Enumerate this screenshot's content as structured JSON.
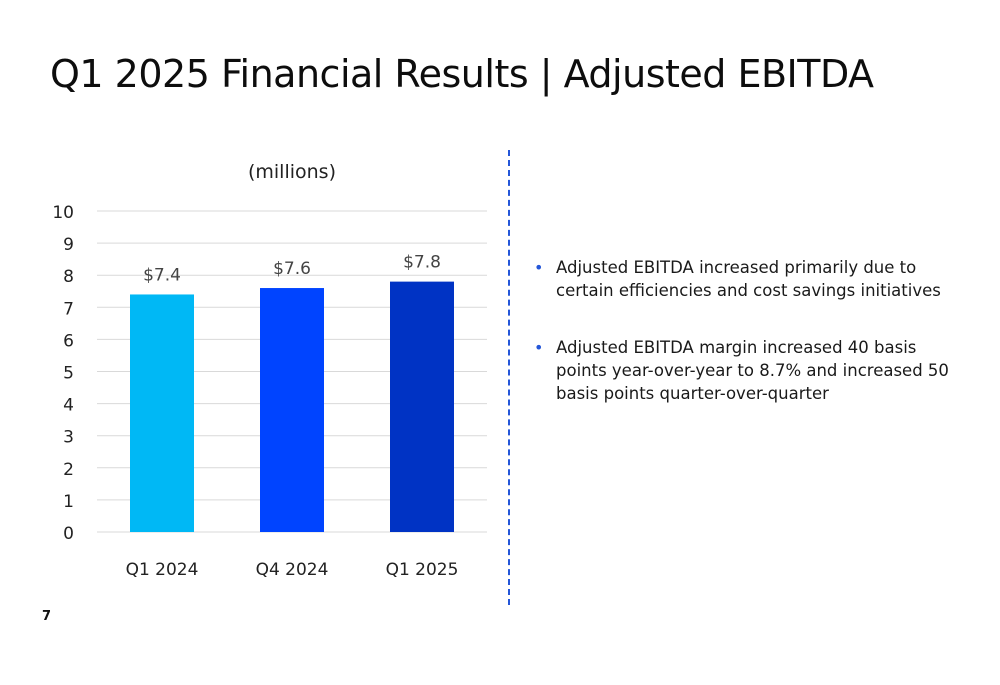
{
  "slide": {
    "title": "Q1 2025 Financial Results | Adjusted EBITDA",
    "page_number": "7",
    "accent_color": "#2456d8"
  },
  "bullets": [
    {
      "text": "Adjusted EBITDA increased primarily due to certain efficiencies and cost savings initiatives"
    },
    {
      "text": "Adjusted EBITDA margin increased 40 basis points year-over-year to 8.7% and increased 50 basis points quarter-over-quarter"
    }
  ],
  "bullet_glyph": "•",
  "chart_data": {
    "type": "bar",
    "title": "(millions)",
    "xlabel": "",
    "ylabel": "",
    "categories": [
      "Q1 2024",
      "Q4 2024",
      "Q1 2025"
    ],
    "values": [
      7.4,
      7.6,
      7.8
    ],
    "data_labels": [
      "$7.4",
      "$7.6",
      "$7.8"
    ],
    "bar_colors": [
      "#00b8f5",
      "#0044ff",
      "#0033c4"
    ],
    "ylim": [
      0,
      10
    ],
    "yticks": [
      "0",
      "1",
      "2",
      "3",
      "4",
      "5",
      "6",
      "7",
      "8",
      "9",
      "10"
    ],
    "grid": true,
    "legend": "none"
  }
}
